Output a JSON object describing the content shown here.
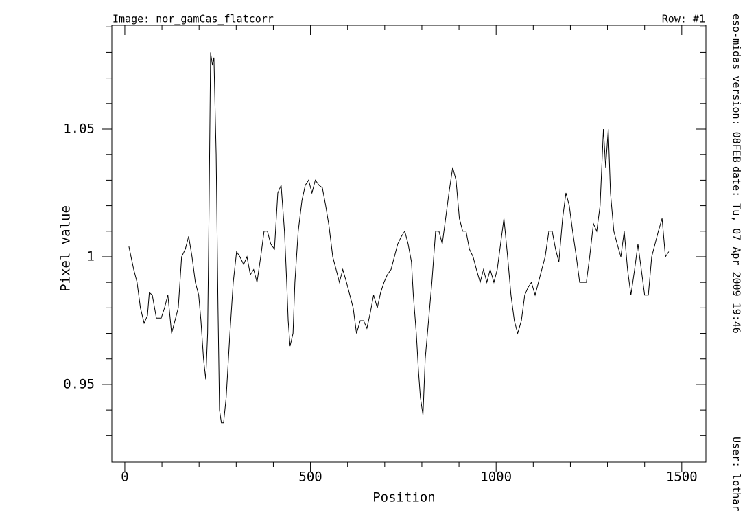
{
  "chart_data": {
    "type": "line",
    "title": "Image: nor_gamCas_flatcorr",
    "subtitle": "Row: #1",
    "annotations": [
      "eso-midas version: 08FEB",
      "date: Tu, 07 Apr 2009 19:46",
      "User: lothar"
    ],
    "x_label": "Position",
    "y_label": "Pixel value",
    "xlim": [
      -35,
      1565
    ],
    "ylim": [
      0.9196,
      1.0906
    ],
    "xticks": [
      0,
      500,
      1000,
      1500
    ],
    "yticks": [
      {
        "value": 0.95,
        "label": "0.95"
      },
      1,
      {
        "value": 1.05,
        "label": "1.05"
      }
    ],
    "xticks_minor": [
      100,
      200,
      300,
      400,
      600,
      700,
      800,
      900,
      1100,
      1200,
      1300,
      1400
    ],
    "yticks_minor": [
      0.93,
      0.94,
      0.96,
      0.97,
      0.98,
      0.99,
      1.01,
      1.02,
      1.03,
      1.04,
      1.06,
      1.07,
      1.08,
      1.09
    ],
    "series": [
      {
        "name": "Row 1",
        "color": "#000000",
        "x": [
          11,
          24,
          33,
          42,
          52,
          61,
          66,
          74,
          85,
          98,
          107,
          116,
          126,
          135,
          144,
          153,
          163,
          172,
          181,
          190,
          199,
          205,
          212,
          218,
          223,
          227,
          231,
          236,
          240,
          246,
          251,
          255,
          260,
          266,
          273,
          283,
          292,
          301,
          310,
          320,
          329,
          338,
          347,
          356,
          366,
          375,
          384,
          393,
          403,
          412,
          421,
          430,
          436,
          440,
          445,
          453,
          458,
          467,
          477,
          486,
          495,
          504,
          513,
          523,
          532,
          541,
          550,
          560,
          569,
          578,
          587,
          597,
          606,
          615,
          624,
          634,
          643,
          652,
          661,
          670,
          680,
          689,
          698,
          707,
          717,
          726,
          735,
          745,
          754,
          763,
          772,
          777,
          785,
          791,
          796,
          803,
          809,
          818,
          827,
          837,
          846,
          855,
          864,
          873,
          883,
          892,
          901,
          910,
          919,
          928,
          938,
          947,
          957,
          966,
          975,
          984,
          994,
          1003,
          1012,
          1021,
          1031,
          1040,
          1049,
          1058,
          1068,
          1077,
          1086,
          1095,
          1105,
          1114,
          1123,
          1132,
          1142,
          1151,
          1160,
          1169,
          1179,
          1188,
          1197,
          1206,
          1216,
          1225,
          1234,
          1243,
          1252,
          1262,
          1271,
          1280,
          1289,
          1295,
          1302,
          1308,
          1317,
          1326,
          1336,
          1345,
          1354,
          1363,
          1373,
          1382,
          1391,
          1400,
          1410,
          1419,
          1428,
          1437,
          1447,
          1456,
          1465
        ],
        "values": [
          1.004,
          0.995,
          0.99,
          0.98,
          0.974,
          0.977,
          0.986,
          0.985,
          0.976,
          0.976,
          0.98,
          0.985,
          0.97,
          0.975,
          0.98,
          1.0,
          1.003,
          1.008,
          1.0,
          0.99,
          0.985,
          0.975,
          0.96,
          0.952,
          0.97,
          1.02,
          1.08,
          1.075,
          1.078,
          1.04,
          0.98,
          0.94,
          0.935,
          0.935,
          0.945,
          0.97,
          0.99,
          1.002,
          1.0,
          0.997,
          1.0,
          0.993,
          0.995,
          0.99,
          1.0,
          1.01,
          1.01,
          1.005,
          1.003,
          1.025,
          1.028,
          1.01,
          0.99,
          0.975,
          0.965,
          0.97,
          0.99,
          1.01,
          1.022,
          1.028,
          1.03,
          1.025,
          1.03,
          1.028,
          1.027,
          1.02,
          1.012,
          1.0,
          0.995,
          0.99,
          0.995,
          0.99,
          0.985,
          0.98,
          0.97,
          0.975,
          0.975,
          0.972,
          0.978,
          0.985,
          0.98,
          0.986,
          0.99,
          0.993,
          0.995,
          1.0,
          1.005,
          1.008,
          1.01,
          1.005,
          0.998,
          0.985,
          0.97,
          0.955,
          0.945,
          0.938,
          0.96,
          0.975,
          0.99,
          1.01,
          1.01,
          1.005,
          1.015,
          1.025,
          1.035,
          1.03,
          1.015,
          1.01,
          1.01,
          1.003,
          1.0,
          0.995,
          0.99,
          0.995,
          0.99,
          0.995,
          0.99,
          0.995,
          1.005,
          1.015,
          1.0,
          0.985,
          0.975,
          0.97,
          0.975,
          0.985,
          0.988,
          0.99,
          0.985,
          0.99,
          0.995,
          1.0,
          1.01,
          1.01,
          1.003,
          0.998,
          1.015,
          1.025,
          1.02,
          1.01,
          1.0,
          0.99,
          0.99,
          0.99,
          1.0,
          1.013,
          1.01,
          1.02,
          1.05,
          1.035,
          1.05,
          1.025,
          1.01,
          1.005,
          1.0,
          1.01,
          0.995,
          0.985,
          0.995,
          1.005,
          0.995,
          0.985,
          0.985,
          1.0,
          1.005,
          1.01,
          1.015,
          1.0,
          1.002
        ]
      }
    ]
  }
}
